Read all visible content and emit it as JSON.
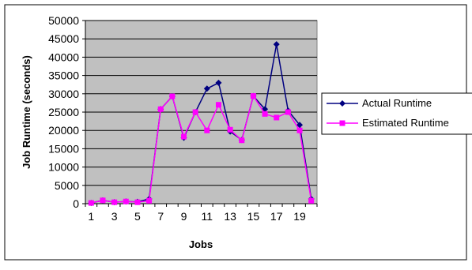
{
  "chart_data": {
    "type": "line",
    "title": "",
    "xlabel": "Jobs",
    "ylabel": "Job Runtime (seconds)",
    "ylim": [
      0,
      50000
    ],
    "yticks": [
      0,
      5000,
      10000,
      15000,
      20000,
      25000,
      30000,
      35000,
      40000,
      45000,
      50000
    ],
    "x": [
      1,
      2,
      3,
      4,
      5,
      6,
      7,
      8,
      9,
      10,
      11,
      12,
      13,
      14,
      15,
      16,
      17,
      18,
      19,
      20
    ],
    "xtick_labels": [
      "1",
      "",
      "3",
      "",
      "5",
      "",
      "7",
      "",
      "9",
      "",
      "11",
      "",
      "13",
      "",
      "15",
      "",
      "17",
      "",
      "19",
      ""
    ],
    "grid": true,
    "legend_position": "right",
    "series": [
      {
        "name": "Actual Runtime",
        "color": "#000080",
        "marker": "diamond",
        "values": [
          200,
          900,
          400,
          600,
          500,
          1300,
          25800,
          29300,
          18000,
          25000,
          31400,
          33000,
          19700,
          17400,
          29400,
          25800,
          43500,
          25400,
          21500,
          1300
        ]
      },
      {
        "name": "Estimated Runtime",
        "color": "#ff00ff",
        "marker": "square",
        "values": [
          200,
          900,
          400,
          600,
          400,
          800,
          25800,
          29300,
          18300,
          25000,
          20000,
          27000,
          20200,
          17300,
          29400,
          24500,
          23500,
          25000,
          20000,
          800
        ]
      }
    ]
  }
}
